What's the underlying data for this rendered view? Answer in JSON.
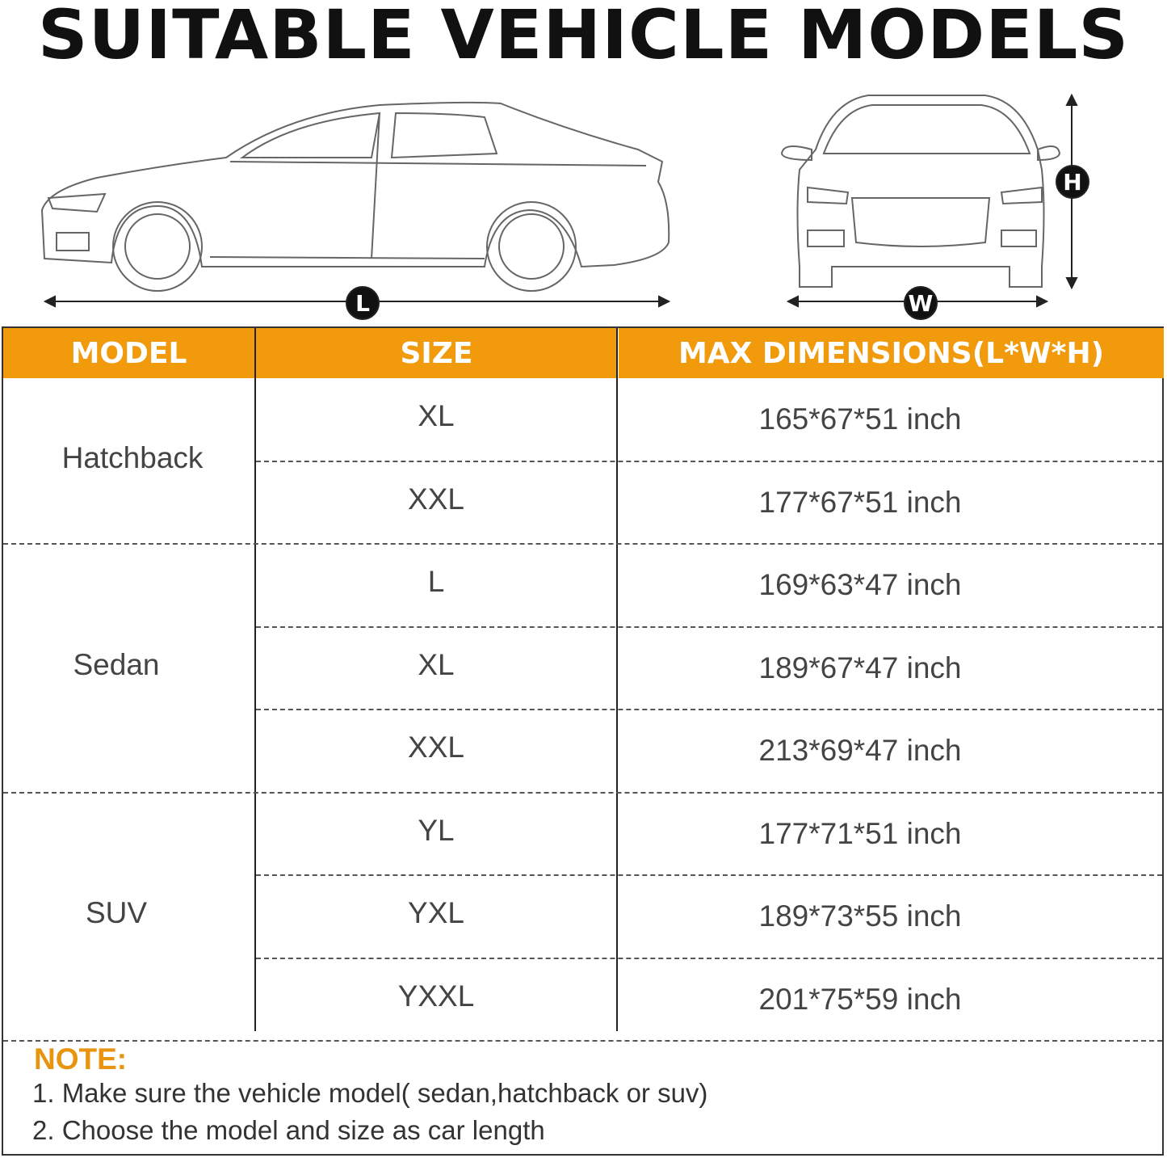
{
  "title": "SUITABLE VEHICLE MODELS",
  "dimension_labels": {
    "length": "L",
    "width": "W",
    "height": "H"
  },
  "colors": {
    "header": "#f09a0c",
    "note": "#e8940e"
  },
  "table": {
    "headers": [
      "MODEL",
      "SIZE",
      "MAX DIMENSIONS(L*W*H)"
    ],
    "groups": [
      {
        "model": "Hatchback",
        "rows": [
          {
            "size": "XL",
            "dims": "165*67*51 inch"
          },
          {
            "size": "XXL",
            "dims": "177*67*51 inch"
          }
        ]
      },
      {
        "model": "Sedan",
        "rows": [
          {
            "size": "L",
            "dims": "169*63*47 inch"
          },
          {
            "size": "XL",
            "dims": "189*67*47 inch"
          },
          {
            "size": "XXL",
            "dims": "213*69*47 inch"
          }
        ]
      },
      {
        "model": "SUV",
        "rows": [
          {
            "size": "YL",
            "dims": "177*71*51 inch"
          },
          {
            "size": "YXL",
            "dims": "189*73*55 inch"
          },
          {
            "size": "YXXL",
            "dims": "201*75*59 inch"
          }
        ]
      }
    ]
  },
  "note": {
    "title": "NOTE:",
    "lines": [
      "1. Make sure the vehicle model( sedan,hatchback or suv)",
      "2. Choose the model and size as car length"
    ]
  }
}
